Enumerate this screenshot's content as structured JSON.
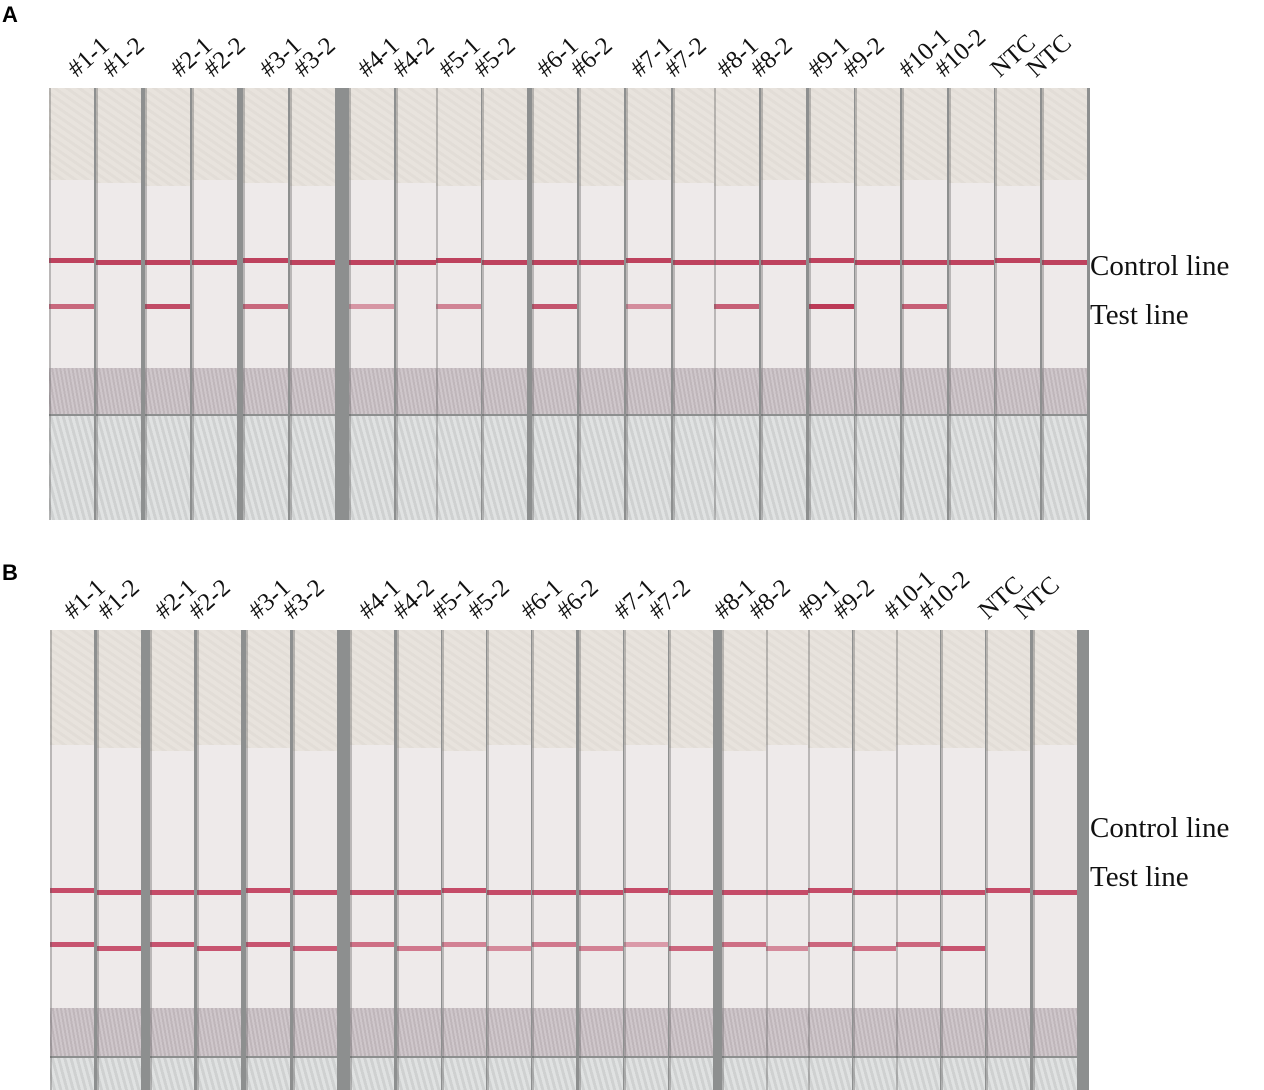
{
  "panels": [
    {
      "letter": "A",
      "labels": [
        "#1-1",
        "#1-2",
        "#2-1",
        "#2-2",
        "#3-1",
        "#3-2",
        "#4-1",
        "#4-2",
        "#5-1",
        "#5-2",
        "#6-1",
        "#6-2",
        "#7-1",
        "#7-2",
        "#8-1",
        "#8-2",
        "#9-1",
        "#9-2",
        "#10-1",
        "#10-2",
        "NTC",
        "NTC"
      ],
      "control_line_label": "Control line",
      "test_line_label": "Test line",
      "test_band_intensity": [
        0.7,
        0,
        0.85,
        0,
        0.7,
        0,
        0.45,
        0,
        0.55,
        0,
        0.8,
        0,
        0.5,
        0,
        0.75,
        0,
        0.95,
        0,
        0.75,
        0,
        0,
        0
      ],
      "control_color": "#b8304f",
      "test_color": "#b8304f"
    },
    {
      "letter": "B",
      "labels": [
        "#1-1",
        "#1-2",
        "#2-1",
        "#2-2",
        "#3-1",
        "#3-2",
        "#4-1",
        "#4-2",
        "#5-1",
        "#5-2",
        "#6-1",
        "#6-2",
        "#7-1",
        "#7-2",
        "#8-1",
        "#8-2",
        "#9-1",
        "#9-2",
        "#10-1",
        "#10-2",
        "NTC",
        "NTC"
      ],
      "control_line_label": "Control line",
      "test_line_label": "Test line",
      "test_band_intensity": [
        0.85,
        0.85,
        0.85,
        0.85,
        0.85,
        0.8,
        0.7,
        0.65,
        0.6,
        0.55,
        0.65,
        0.6,
        0.45,
        0.75,
        0.7,
        0.55,
        0.75,
        0.7,
        0.75,
        0.85,
        0,
        0
      ],
      "control_color": "#c03a5a",
      "test_color": "#c03a5a"
    }
  ]
}
